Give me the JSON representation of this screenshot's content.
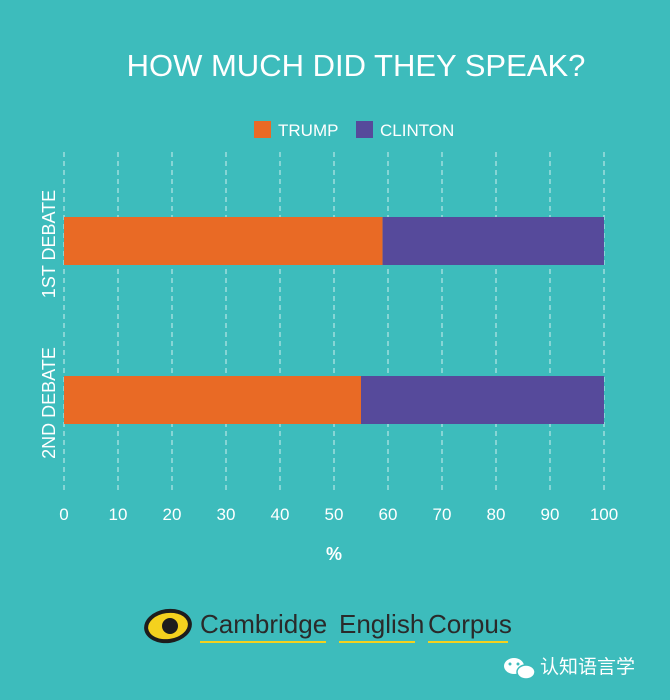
{
  "chart_data": {
    "type": "bar",
    "orientation": "horizontal",
    "stacked": true,
    "title": "HOW MUCH DID THEY SPEAK?",
    "xlabel": "%",
    "ylabel": "",
    "xlim": [
      0,
      100
    ],
    "xticks": [
      "0",
      "10",
      "20",
      "30",
      "40",
      "50",
      "60",
      "70",
      "80",
      "90",
      "100"
    ],
    "categories": [
      "1ST DEBATE",
      "2ND DEBATE"
    ],
    "series": [
      {
        "name": "TRUMP",
        "color": "#e96a25",
        "values": [
          59,
          55
        ]
      },
      {
        "name": "CLINTON",
        "color": "#564a9b",
        "values": [
          41,
          45
        ]
      }
    ],
    "grid": true,
    "legend_position": "top-center"
  },
  "branding": {
    "logo_words": [
      "Cambridge",
      "English",
      "Corpus"
    ],
    "logo_icon": "eye-logo-icon",
    "watermark_icon": "wechat-icon",
    "watermark_text": "认知语言学"
  }
}
